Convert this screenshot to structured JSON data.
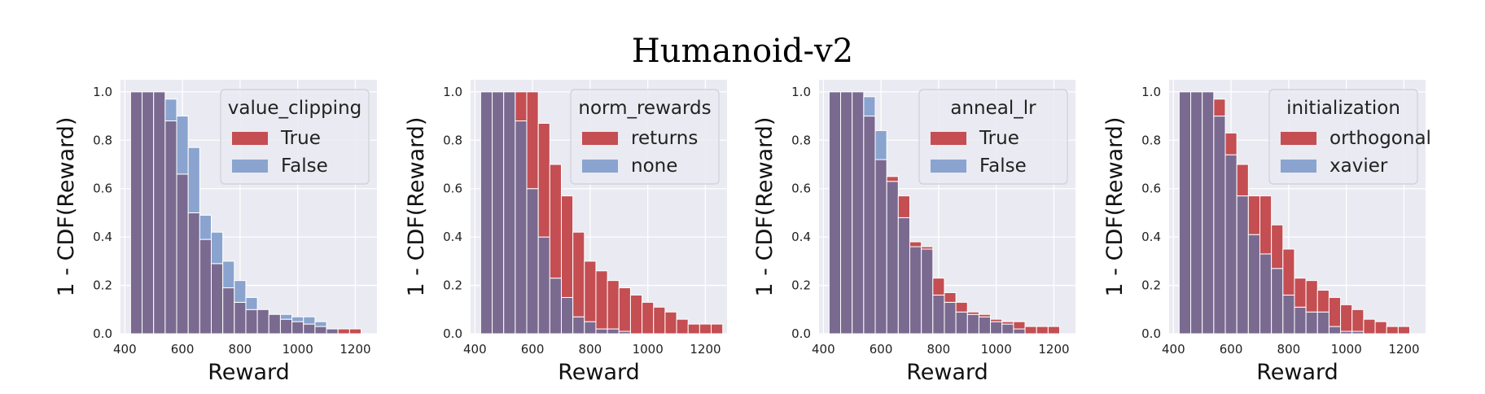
{
  "title": "Humanoid-v2",
  "colors": {
    "series_a": "#c44e52",
    "series_b": "#8aa4cf",
    "overlap": "#7a6a90",
    "plot_bg": "#eaeaf2",
    "grid": "#ffffff"
  },
  "chart_data": [
    {
      "type": "bar",
      "xlabel": "Reward",
      "ylabel": "1 - CDF(Reward)",
      "xlim": [
        385,
        1275
      ],
      "ylim": [
        0,
        1.05
      ],
      "xticks": [
        400,
        600,
        800,
        1000,
        1200
      ],
      "yticks": [
        0.0,
        0.2,
        0.4,
        0.6,
        0.8,
        1.0
      ],
      "grid": true,
      "legend": {
        "title": "value_clipping",
        "position": "top-right"
      },
      "bin_edges": [
        420,
        460,
        500,
        540,
        580,
        620,
        660,
        700,
        740,
        780,
        820,
        860,
        900,
        940,
        980,
        1020,
        1060,
        1100,
        1140,
        1180,
        1220,
        1260
      ],
      "series": [
        {
          "name": "True",
          "values": [
            1.0,
            1.0,
            1.0,
            0.88,
            0.66,
            0.5,
            0.39,
            0.29,
            0.19,
            0.13,
            0.1,
            0.1,
            0.08,
            0.06,
            0.05,
            0.04,
            0.03,
            0.02,
            0.02,
            0.02,
            0.0
          ]
        },
        {
          "name": "False",
          "values": [
            1.0,
            1.0,
            1.0,
            0.97,
            0.9,
            0.77,
            0.49,
            0.42,
            0.3,
            0.22,
            0.15,
            0.1,
            0.08,
            0.08,
            0.07,
            0.07,
            0.05,
            0.02,
            0.0,
            0.0,
            0.0
          ]
        }
      ]
    },
    {
      "type": "bar",
      "xlabel": "Reward",
      "ylabel": "1 - CDF(Reward)",
      "xlim": [
        385,
        1275
      ],
      "ylim": [
        0,
        1.05
      ],
      "xticks": [
        400,
        600,
        800,
        1000,
        1200
      ],
      "yticks": [
        0.0,
        0.2,
        0.4,
        0.6,
        0.8,
        1.0
      ],
      "grid": true,
      "legend": {
        "title": "norm_rewards",
        "position": "top-right"
      },
      "bin_edges": [
        420,
        460,
        500,
        540,
        580,
        620,
        660,
        700,
        740,
        780,
        820,
        860,
        900,
        940,
        980,
        1020,
        1060,
        1100,
        1140,
        1180,
        1220,
        1260
      ],
      "series": [
        {
          "name": "returns",
          "values": [
            1.0,
            1.0,
            1.0,
            1.0,
            1.0,
            0.87,
            0.7,
            0.57,
            0.42,
            0.3,
            0.26,
            0.22,
            0.19,
            0.16,
            0.13,
            0.11,
            0.09,
            0.06,
            0.04,
            0.04,
            0.04
          ]
        },
        {
          "name": "none",
          "values": [
            1.0,
            1.0,
            1.0,
            0.88,
            0.6,
            0.4,
            0.23,
            0.15,
            0.07,
            0.05,
            0.02,
            0.02,
            0.01,
            0.0,
            0.0,
            0.0,
            0.0,
            0.0,
            0.0,
            0.0,
            0.0
          ]
        }
      ]
    },
    {
      "type": "bar",
      "xlabel": "Reward",
      "ylabel": "1 - CDF(Reward)",
      "xlim": [
        385,
        1275
      ],
      "ylim": [
        0,
        1.05
      ],
      "xticks": [
        400,
        600,
        800,
        1000,
        1200
      ],
      "yticks": [
        0.0,
        0.2,
        0.4,
        0.6,
        0.8,
        1.0
      ],
      "grid": true,
      "legend": {
        "title": "anneal_lr",
        "position": "top-right"
      },
      "bin_edges": [
        420,
        460,
        500,
        540,
        580,
        620,
        660,
        700,
        740,
        780,
        820,
        860,
        900,
        940,
        980,
        1020,
        1060,
        1100,
        1140,
        1180,
        1220,
        1260
      ],
      "series": [
        {
          "name": "True",
          "values": [
            1.0,
            1.0,
            1.0,
            0.9,
            0.72,
            0.65,
            0.57,
            0.38,
            0.36,
            0.23,
            0.17,
            0.13,
            0.09,
            0.08,
            0.06,
            0.05,
            0.05,
            0.03,
            0.03,
            0.03,
            0.0
          ]
        },
        {
          "name": "False",
          "values": [
            1.0,
            1.0,
            1.0,
            0.98,
            0.84,
            0.63,
            0.48,
            0.36,
            0.35,
            0.16,
            0.13,
            0.09,
            0.08,
            0.07,
            0.05,
            0.04,
            0.02,
            0.0,
            0.0,
            0.0,
            0.0
          ]
        }
      ]
    },
    {
      "type": "bar",
      "xlabel": "Reward",
      "ylabel": "1 - CDF(Reward)",
      "xlim": [
        385,
        1275
      ],
      "ylim": [
        0,
        1.05
      ],
      "xticks": [
        400,
        600,
        800,
        1000,
        1200
      ],
      "yticks": [
        0.0,
        0.2,
        0.4,
        0.6,
        0.8,
        1.0
      ],
      "grid": true,
      "legend": {
        "title": "initialization",
        "position": "top-right"
      },
      "bin_edges": [
        420,
        460,
        500,
        540,
        580,
        620,
        660,
        700,
        740,
        780,
        820,
        860,
        900,
        940,
        980,
        1020,
        1060,
        1100,
        1140,
        1180,
        1220,
        1260
      ],
      "series": [
        {
          "name": "orthogonal",
          "values": [
            1.0,
            1.0,
            1.0,
            0.97,
            0.83,
            0.7,
            0.57,
            0.57,
            0.45,
            0.35,
            0.23,
            0.22,
            0.18,
            0.15,
            0.12,
            0.1,
            0.06,
            0.05,
            0.03,
            0.03,
            0.0
          ]
        },
        {
          "name": "xavier",
          "values": [
            1.0,
            1.0,
            1.0,
            0.9,
            0.74,
            0.57,
            0.41,
            0.33,
            0.27,
            0.16,
            0.11,
            0.09,
            0.09,
            0.03,
            0.01,
            0.01,
            0.0,
            0.0,
            0.0,
            0.0,
            0.0
          ]
        }
      ]
    }
  ]
}
